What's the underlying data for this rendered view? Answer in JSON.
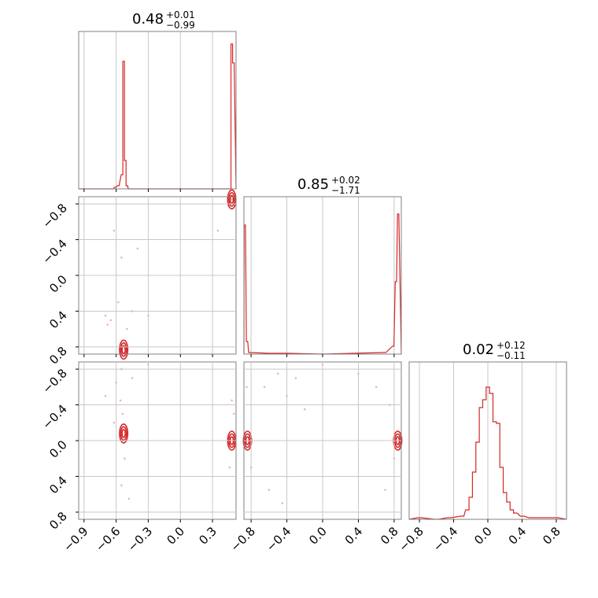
{
  "colors": {
    "series": "#d62728",
    "frame": "#808080",
    "grid": "#c8c8c8"
  },
  "chart_data": [
    {
      "type": "histogram",
      "panel": "diag-1",
      "title_main": "0.48",
      "title_plus": "+0.01",
      "title_minus": "−0.99",
      "xlim": [
        -0.95,
        0.52
      ],
      "bins": [
        {
          "x": -0.63,
          "v": 0.0
        },
        {
          "x": -0.61,
          "v": 0.01
        },
        {
          "x": -0.58,
          "v": 0.02
        },
        {
          "x": -0.545,
          "v": 0.09
        },
        {
          "x": -0.53,
          "v": 0.81
        },
        {
          "x": -0.515,
          "v": 0.18
        },
        {
          "x": -0.5,
          "v": 0.02
        },
        {
          "x": -0.48,
          "v": 0.0
        },
        {
          "x": 0.465,
          "v": 0.0
        },
        {
          "x": 0.48,
          "v": 0.92
        },
        {
          "x": 0.495,
          "v": 0.8
        }
      ]
    },
    {
      "type": "histogram",
      "panel": "diag-2",
      "title_main": "0.85",
      "title_plus": "+0.02",
      "title_minus": "−1.71",
      "xlim": [
        -0.88,
        0.88
      ],
      "bins": [
        {
          "x": -0.87,
          "v": 0.82
        },
        {
          "x": -0.845,
          "v": 0.08
        },
        {
          "x": -0.82,
          "v": 0.01
        },
        {
          "x": -0.6,
          "v": 0.005
        },
        {
          "x": -0.4,
          "v": 0.005
        },
        {
          "x": 0.0,
          "v": 0.0
        },
        {
          "x": 0.7,
          "v": 0.01
        },
        {
          "x": 0.79,
          "v": 0.05
        },
        {
          "x": 0.82,
          "v": 0.46
        },
        {
          "x": 0.845,
          "v": 0.89
        }
      ]
    },
    {
      "type": "histogram",
      "panel": "diag-3",
      "title_main": "0.02",
      "title_plus": "+0.12",
      "title_minus": "−0.11",
      "xlim": [
        -0.92,
        0.92
      ],
      "bins": [
        {
          "x": -0.8,
          "v": 0.01
        },
        {
          "x": -0.6,
          "v": 0.0
        },
        {
          "x": -0.45,
          "v": 0.01
        },
        {
          "x": -0.3,
          "v": 0.02
        },
        {
          "x": -0.24,
          "v": 0.06
        },
        {
          "x": -0.2,
          "v": 0.14
        },
        {
          "x": -0.16,
          "v": 0.3
        },
        {
          "x": -0.12,
          "v": 0.49
        },
        {
          "x": -0.08,
          "v": 0.71
        },
        {
          "x": -0.04,
          "v": 0.76
        },
        {
          "x": 0.0,
          "v": 0.84
        },
        {
          "x": 0.04,
          "v": 0.8
        },
        {
          "x": 0.08,
          "v": 0.62
        },
        {
          "x": 0.12,
          "v": 0.61
        },
        {
          "x": 0.16,
          "v": 0.33
        },
        {
          "x": 0.2,
          "v": 0.17
        },
        {
          "x": 0.24,
          "v": 0.11
        },
        {
          "x": 0.28,
          "v": 0.06
        },
        {
          "x": 0.32,
          "v": 0.04
        },
        {
          "x": 0.4,
          "v": 0.02
        },
        {
          "x": 0.5,
          "v": 0.01
        },
        {
          "x": 0.6,
          "v": 0.01
        },
        {
          "x": 0.8,
          "v": 0.01
        }
      ]
    },
    {
      "type": "scatter",
      "panel": "p21",
      "xlim": [
        -0.95,
        0.52
      ],
      "ylim": [
        -0.88,
        0.88
      ],
      "points": [
        [
          -0.55,
          0.2
        ],
        [
          -0.62,
          0.5
        ],
        [
          -0.4,
          0.3
        ],
        [
          -0.7,
          -0.45
        ],
        [
          -0.58,
          -0.3
        ],
        [
          -0.5,
          -0.6
        ],
        [
          -0.65,
          -0.5
        ],
        [
          -0.45,
          -0.4
        ],
        [
          -0.52,
          -0.82
        ],
        [
          -0.56,
          -0.84
        ],
        [
          0.45,
          0.78
        ],
        [
          0.48,
          0.85
        ],
        [
          0.35,
          0.5
        ],
        [
          -0.68,
          -0.55
        ],
        [
          -0.3,
          -0.45
        ]
      ],
      "contours": [
        [
          -0.53,
          -0.83
        ],
        [
          0.48,
          0.85
        ]
      ]
    },
    {
      "type": "scatter",
      "panel": "p31",
      "xlim": [
        -0.95,
        0.52
      ],
      "ylim": [
        -0.88,
        0.88
      ],
      "points": [
        [
          -0.55,
          0.8
        ],
        [
          -0.56,
          0.45
        ],
        [
          -0.54,
          0.3
        ],
        [
          -0.7,
          0.5
        ],
        [
          -0.52,
          -0.2
        ],
        [
          -0.55,
          -0.5
        ],
        [
          -0.6,
          0.65
        ],
        [
          -0.45,
          0.7
        ],
        [
          -0.48,
          -0.65
        ],
        [
          0.48,
          0.45
        ],
        [
          0.46,
          -0.3
        ],
        [
          0.5,
          0.3
        ],
        [
          -0.3,
          0.85
        ],
        [
          -0.62,
          0.2
        ]
      ],
      "contours": [
        [
          -0.53,
          0.08
        ],
        [
          0.48,
          0.0
        ]
      ]
    },
    {
      "type": "scatter",
      "panel": "p32",
      "xlim": [
        -0.88,
        0.88
      ],
      "ylim": [
        -0.88,
        0.88
      ],
      "points": [
        [
          -0.85,
          0.6
        ],
        [
          -0.8,
          -0.3
        ],
        [
          -0.6,
          -0.55
        ],
        [
          -0.4,
          0.5
        ],
        [
          -0.3,
          0.7
        ],
        [
          0.0,
          0.85
        ],
        [
          0.4,
          0.75
        ],
        [
          0.6,
          0.6
        ],
        [
          0.75,
          0.4
        ],
        [
          0.8,
          -0.2
        ],
        [
          0.7,
          -0.55
        ],
        [
          -0.65,
          0.6
        ],
        [
          -0.2,
          0.35
        ],
        [
          -0.45,
          -0.7
        ],
        [
          -0.5,
          0.75
        ]
      ],
      "contours": [
        [
          -0.84,
          0.0
        ],
        [
          0.84,
          0.0
        ]
      ]
    }
  ],
  "axes": {
    "x1_ticks": [
      "−0.9",
      "−0.6",
      "−0.3",
      "0.0",
      "0.3"
    ],
    "x2_ticks": [
      "−0.8",
      "−0.4",
      "0.0",
      "0.4",
      "0.8"
    ],
    "x3_ticks": [
      "−0.8",
      "−0.4",
      "0.0",
      "0.4",
      "0.8"
    ],
    "y2_ticks": [
      "0.8",
      "0.4",
      "0.0",
      "−0.4",
      "−0.8"
    ],
    "y3_ticks": [
      "0.8",
      "0.4",
      "0.0",
      "−0.4",
      "−0.8"
    ]
  }
}
